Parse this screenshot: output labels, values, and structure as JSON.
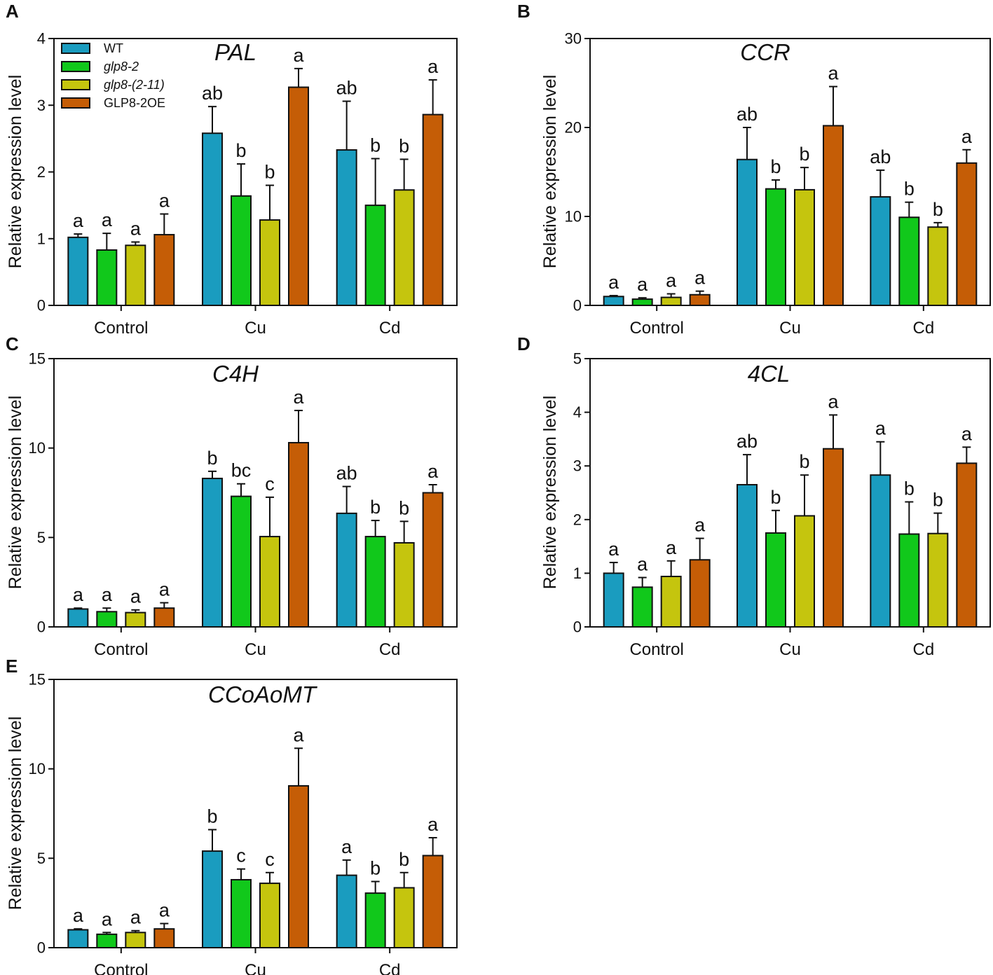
{
  "figure": {
    "ylabel": "Relative expression level",
    "categories": [
      "Control",
      "Cu",
      "Cd"
    ],
    "series": [
      {
        "name": "WT",
        "color": "#1a9cbf",
        "italic": false
      },
      {
        "name": "glp8-2",
        "color": "#11c81b",
        "italic": true
      },
      {
        "name": "glp8-(2-11)",
        "color": "#c5c50e",
        "italic": true
      },
      {
        "name": "GLP8-2OE",
        "color": "#c55d06",
        "italic": false
      }
    ]
  },
  "chart_data": [
    {
      "panel": "A",
      "type": "bar",
      "title": "PAL",
      "categories": [
        "Control",
        "Cu",
        "Cd"
      ],
      "xlabel": "",
      "ylabel": "Relative expression level",
      "ylim": [
        0,
        4
      ],
      "yticks": [
        0,
        1,
        2,
        3,
        4
      ],
      "legend": "top-left",
      "series": [
        {
          "name": "WT",
          "values": [
            1.02,
            2.58,
            2.33
          ],
          "errors": [
            0.05,
            0.4,
            0.73
          ],
          "letters": [
            "a",
            "ab",
            "ab"
          ]
        },
        {
          "name": "glp8-2",
          "values": [
            0.83,
            1.64,
            1.5
          ],
          "errors": [
            0.25,
            0.48,
            0.7
          ],
          "letters": [
            "a",
            "b",
            "b"
          ]
        },
        {
          "name": "glp8-(2-11)",
          "values": [
            0.9,
            1.28,
            1.73
          ],
          "errors": [
            0.05,
            0.52,
            0.46
          ],
          "letters": [
            "a",
            "b",
            "b"
          ]
        },
        {
          "name": "GLP8-2OE",
          "values": [
            1.06,
            3.27,
            2.86
          ],
          "errors": [
            0.31,
            0.28,
            0.52
          ],
          "letters": [
            "a",
            "a",
            "a"
          ]
        }
      ]
    },
    {
      "panel": "B",
      "type": "bar",
      "title": "CCR",
      "categories": [
        "Control",
        "Cu",
        "Cd"
      ],
      "xlabel": "",
      "ylabel": "Relative expression level",
      "ylim": [
        0,
        30
      ],
      "yticks": [
        0,
        10,
        20,
        30
      ],
      "series": [
        {
          "name": "WT",
          "values": [
            1.0,
            16.4,
            12.2
          ],
          "errors": [
            0.1,
            3.6,
            3.0
          ],
          "letters": [
            "a",
            "ab",
            "ab"
          ]
        },
        {
          "name": "glp8-2",
          "values": [
            0.7,
            13.1,
            9.9
          ],
          "errors": [
            0.15,
            1.0,
            1.7
          ],
          "letters": [
            "a",
            "b",
            "b"
          ]
        },
        {
          "name": "glp8-(2-11)",
          "values": [
            0.9,
            13.0,
            8.8
          ],
          "errors": [
            0.4,
            2.5,
            0.5
          ],
          "letters": [
            "a",
            "b",
            "b"
          ]
        },
        {
          "name": "GLP8-2OE",
          "values": [
            1.2,
            20.2,
            16.0
          ],
          "errors": [
            0.4,
            4.4,
            1.5
          ],
          "letters": [
            "a",
            "a",
            "a"
          ]
        }
      ]
    },
    {
      "panel": "C",
      "type": "bar",
      "title": "C4H",
      "categories": [
        "Control",
        "Cu",
        "Cd"
      ],
      "xlabel": "",
      "ylabel": "Relative expression level",
      "ylim": [
        0,
        15
      ],
      "yticks": [
        0,
        5,
        10,
        15
      ],
      "series": [
        {
          "name": "WT",
          "values": [
            1.0,
            8.3,
            6.35
          ],
          "errors": [
            0.05,
            0.4,
            1.5
          ],
          "letters": [
            "a",
            "b",
            "ab"
          ]
        },
        {
          "name": "glp8-2",
          "values": [
            0.85,
            7.3,
            5.05
          ],
          "errors": [
            0.2,
            0.7,
            0.9
          ],
          "letters": [
            "a",
            "bc",
            "b"
          ]
        },
        {
          "name": "glp8-(2-11)",
          "values": [
            0.8,
            5.05,
            4.7
          ],
          "errors": [
            0.15,
            2.2,
            1.2
          ],
          "letters": [
            "a",
            "c",
            "b"
          ]
        },
        {
          "name": "GLP8-2OE",
          "values": [
            1.05,
            10.3,
            7.5
          ],
          "errors": [
            0.3,
            1.8,
            0.45
          ],
          "letters": [
            "a",
            "a",
            "a"
          ]
        }
      ]
    },
    {
      "panel": "D",
      "type": "bar",
      "title": "4CL",
      "categories": [
        "Control",
        "Cu",
        "Cd"
      ],
      "xlabel": "",
      "ylabel": "Relative expression level",
      "ylim": [
        0,
        5
      ],
      "yticks": [
        0,
        1,
        2,
        3,
        4,
        5
      ],
      "series": [
        {
          "name": "WT",
          "values": [
            1.0,
            2.65,
            2.83
          ],
          "errors": [
            0.2,
            0.56,
            0.62
          ],
          "letters": [
            "a",
            "ab",
            "a"
          ]
        },
        {
          "name": "glp8-2",
          "values": [
            0.74,
            1.75,
            1.73
          ],
          "errors": [
            0.18,
            0.42,
            0.6
          ],
          "letters": [
            "a",
            "b",
            "b"
          ]
        },
        {
          "name": "glp8-(2-11)",
          "values": [
            0.94,
            2.07,
            1.74
          ],
          "errors": [
            0.29,
            0.76,
            0.38
          ],
          "letters": [
            "a",
            "b",
            "b"
          ]
        },
        {
          "name": "GLP8-2OE",
          "values": [
            1.25,
            3.32,
            3.05
          ],
          "errors": [
            0.4,
            0.63,
            0.3
          ],
          "letters": [
            "a",
            "a",
            "a"
          ]
        }
      ]
    },
    {
      "panel": "E",
      "type": "bar",
      "title": "CCoAoMT",
      "categories": [
        "Control",
        "Cu",
        "Cd"
      ],
      "xlabel": "",
      "ylabel": "Relative expression level",
      "ylim": [
        0,
        15
      ],
      "yticks": [
        0,
        5,
        10,
        15
      ],
      "series": [
        {
          "name": "WT",
          "values": [
            1.0,
            5.4,
            4.05
          ],
          "errors": [
            0.05,
            1.2,
            0.85
          ],
          "letters": [
            "a",
            "b",
            "a"
          ]
        },
        {
          "name": "glp8-2",
          "values": [
            0.75,
            3.8,
            3.05
          ],
          "errors": [
            0.1,
            0.6,
            0.65
          ],
          "letters": [
            "a",
            "c",
            "b"
          ]
        },
        {
          "name": "glp8-(2-11)",
          "values": [
            0.85,
            3.6,
            3.35
          ],
          "errors": [
            0.1,
            0.6,
            0.85
          ],
          "letters": [
            "a",
            "c",
            "b"
          ]
        },
        {
          "name": "GLP8-2OE",
          "values": [
            1.05,
            9.05,
            5.15
          ],
          "errors": [
            0.3,
            2.1,
            1.0
          ],
          "letters": [
            "a",
            "a",
            "a"
          ]
        }
      ]
    }
  ]
}
